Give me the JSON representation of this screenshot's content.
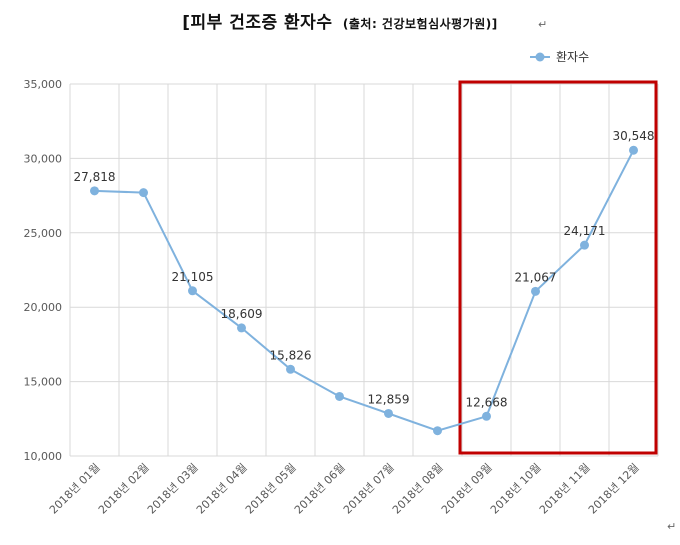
{
  "chart_data": {
    "type": "line",
    "title": "[피부 건조증 환자수",
    "subtitle": "(출처: 건강보험심사평가원)]",
    "categories": [
      "2018년 01월",
      "2018년 02월",
      "2018년 03월",
      "2018년 04월",
      "2018년 05월",
      "2018년 06월",
      "2018년 07월",
      "2018년 08월",
      "2018년 09월",
      "2018년 10월",
      "2018년 11월",
      "2018년 12월"
    ],
    "series": [
      {
        "name": "환자수",
        "values": [
          27818,
          27700,
          21105,
          18609,
          15826,
          14000,
          12859,
          11700,
          12668,
          21067,
          24171,
          30548
        ],
        "labels": [
          "27,818",
          "",
          "21,105",
          "18,609",
          "15,826",
          "",
          "12,859",
          "",
          "12,668",
          "21,067",
          "24,171",
          "30,548"
        ],
        "color": "#7fb2de"
      }
    ],
    "yticks": [
      "10,000",
      "15,000",
      "20,000",
      "25,000",
      "30,000",
      "35,000"
    ],
    "ylim": [
      10000,
      35000
    ],
    "grid": true,
    "legend": "top-right",
    "highlight": {
      "from_category": "2018년 09월",
      "to_category": "2018년 12월",
      "color": "#c00000"
    }
  }
}
